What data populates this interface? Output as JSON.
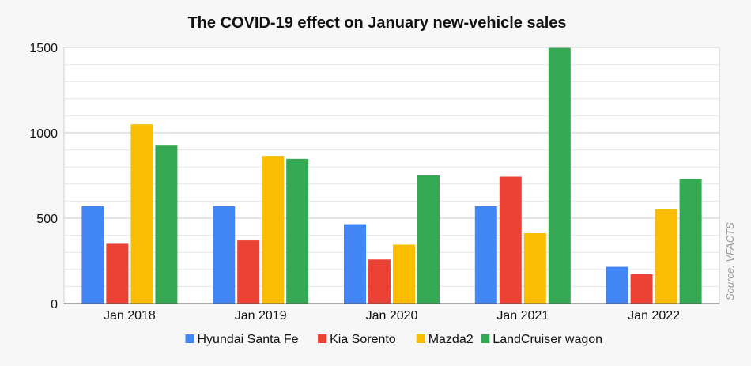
{
  "chart_data": {
    "type": "bar",
    "title": "The COVID-19 effect on January new-vehicle sales",
    "categories": [
      "Jan 2018",
      "Jan 2019",
      "Jan 2020",
      "Jan 2021",
      "Jan 2022"
    ],
    "series": [
      {
        "name": "Hyundai Santa Fe",
        "color": "#4285f4",
        "values": [
          570,
          570,
          465,
          570,
          215
        ]
      },
      {
        "name": "Kia Sorento",
        "color": "#ea4335",
        "values": [
          350,
          370,
          258,
          743,
          172
        ]
      },
      {
        "name": "Mazda2",
        "color": "#fbbc04",
        "values": [
          1050,
          865,
          345,
          412,
          552
        ]
      },
      {
        "name": "LandCruiser wagon",
        "color": "#34a853",
        "values": [
          925,
          848,
          750,
          1497,
          730
        ]
      }
    ],
    "ylim": [
      0,
      1500
    ],
    "yticks": [
      0,
      500,
      1000,
      1500
    ],
    "grid": true,
    "legend": "bottom",
    "source": "Source: VFACTS"
  }
}
